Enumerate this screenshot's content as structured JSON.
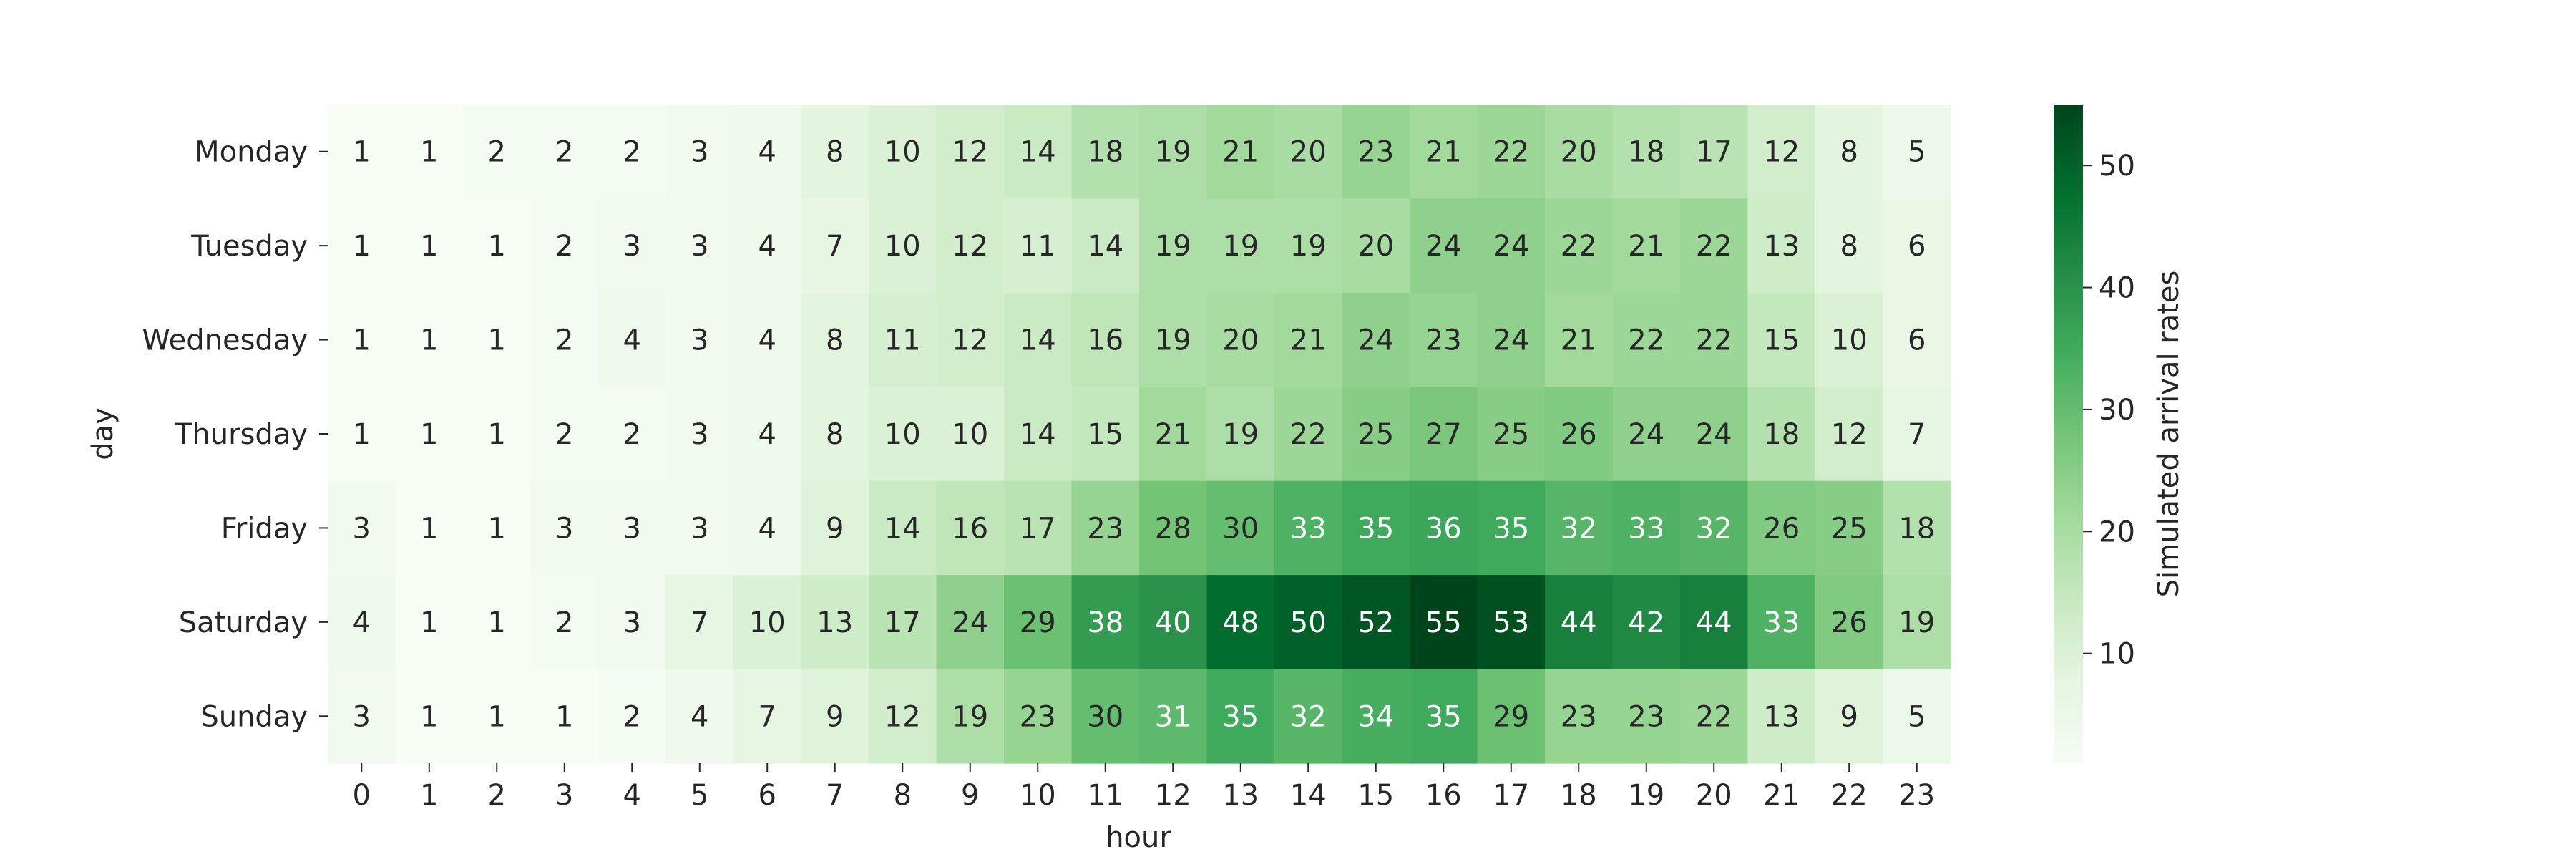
{
  "chart_data": {
    "type": "heatmap",
    "xlabel": "hour",
    "ylabel": "day",
    "x": [
      "0",
      "1",
      "2",
      "3",
      "4",
      "5",
      "6",
      "7",
      "8",
      "9",
      "10",
      "11",
      "12",
      "13",
      "14",
      "15",
      "16",
      "17",
      "18",
      "19",
      "20",
      "21",
      "22",
      "23"
    ],
    "y": [
      "Monday",
      "Tuesday",
      "Wednesday",
      "Thursday",
      "Friday",
      "Saturday",
      "Sunday"
    ],
    "values": [
      [
        1,
        1,
        2,
        2,
        2,
        3,
        4,
        8,
        10,
        12,
        14,
        18,
        19,
        21,
        20,
        23,
        21,
        22,
        20,
        18,
        17,
        12,
        8,
        5
      ],
      [
        1,
        1,
        1,
        2,
        3,
        3,
        4,
        7,
        10,
        12,
        11,
        14,
        19,
        19,
        19,
        20,
        24,
        24,
        22,
        21,
        22,
        13,
        8,
        6
      ],
      [
        1,
        1,
        1,
        2,
        4,
        3,
        4,
        8,
        11,
        12,
        14,
        16,
        19,
        20,
        21,
        24,
        23,
        24,
        21,
        22,
        22,
        15,
        10,
        6
      ],
      [
        1,
        1,
        1,
        2,
        2,
        3,
        4,
        8,
        10,
        10,
        14,
        15,
        21,
        19,
        22,
        25,
        27,
        25,
        26,
        24,
        24,
        18,
        12,
        7
      ],
      [
        3,
        1,
        1,
        3,
        3,
        3,
        4,
        9,
        14,
        16,
        17,
        23,
        28,
        30,
        33,
        35,
        36,
        35,
        32,
        33,
        32,
        26,
        25,
        18
      ],
      [
        4,
        1,
        1,
        2,
        3,
        7,
        10,
        13,
        17,
        24,
        29,
        38,
        40,
        48,
        50,
        52,
        55,
        53,
        44,
        42,
        44,
        33,
        26,
        19
      ],
      [
        3,
        1,
        1,
        1,
        2,
        4,
        7,
        9,
        12,
        19,
        23,
        30,
        31,
        35,
        32,
        34,
        35,
        29,
        23,
        23,
        22,
        13,
        9,
        5
      ]
    ],
    "colorbar": {
      "label": "Simulated arrival rates",
      "ticks": [
        10,
        20,
        30,
        40,
        50
      ],
      "range": [
        1,
        55
      ],
      "colormap": "Greens"
    },
    "grid": false,
    "legend": "none"
  }
}
